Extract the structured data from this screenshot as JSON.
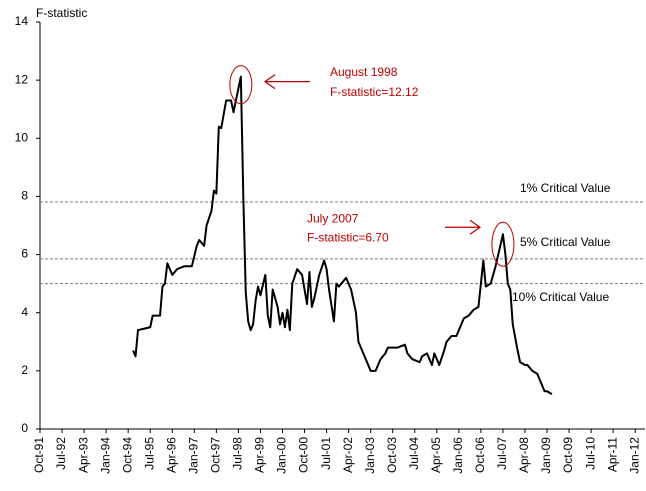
{
  "chart_data": {
    "type": "line",
    "y_label": "F-statistic",
    "x": [
      "1994-12",
      "1995-01",
      "1995-02",
      "1995-07",
      "1995-08",
      "1995-11",
      "1995-12",
      "1996-01",
      "1996-02",
      "1996-04",
      "1996-06",
      "1996-09",
      "1996-12",
      "1997-02",
      "1997-03",
      "1997-05",
      "1997-06",
      "1997-08",
      "1997-09",
      "1997-10",
      "1997-11",
      "1997-12",
      "1998-02",
      "1998-04",
      "1998-05",
      "1998-08",
      "1998-09",
      "1998-10",
      "1998-11",
      "1998-12",
      "1999-01",
      "1999-02",
      "1999-03",
      "1999-04",
      "1999-06",
      "1999-07",
      "1999-08",
      "1999-09",
      "1999-11",
      "1999-12",
      "2000-01",
      "2000-02",
      "2000-03",
      "2000-04",
      "2000-05",
      "2000-07",
      "2000-09",
      "2000-11",
      "2000-12",
      "2001-01",
      "2001-02",
      "2001-04",
      "2001-06",
      "2001-07",
      "2001-08",
      "2001-10",
      "2001-11",
      "2001-12",
      "2002-03",
      "2002-05",
      "2002-07",
      "2002-08",
      "2002-10",
      "2002-12",
      "2003-01",
      "2003-03",
      "2003-05",
      "2003-07",
      "2003-08",
      "2003-10",
      "2003-12",
      "2004-03",
      "2004-04",
      "2004-06",
      "2004-09",
      "2004-10",
      "2004-12",
      "2005-02",
      "2005-03",
      "2005-05",
      "2005-07",
      "2005-08",
      "2005-10",
      "2005-12",
      "2006-02",
      "2006-03",
      "2006-05",
      "2006-07",
      "2006-09",
      "2006-11",
      "2006-12",
      "2007-02",
      "2007-04",
      "2007-07",
      "2007-08",
      "2007-09",
      "2007-10",
      "2007-11",
      "2008-01",
      "2008-02",
      "2008-04",
      "2008-05",
      "2008-07",
      "2008-09",
      "2008-10",
      "2008-12",
      "2009-01",
      "2009-03"
    ],
    "series": [
      {
        "color": "#000000",
        "values": [
          2.7,
          2.5,
          3.4,
          3.5,
          3.9,
          3.9,
          4.9,
          5.0,
          5.7,
          5.3,
          5.5,
          5.6,
          5.6,
          6.3,
          6.5,
          6.3,
          7.0,
          7.5,
          8.2,
          8.1,
          10.4,
          10.35,
          11.3,
          11.3,
          10.9,
          12.12,
          8.0,
          4.7,
          3.7,
          3.4,
          3.6,
          4.4,
          4.9,
          4.6,
          5.3,
          3.9,
          3.5,
          4.8,
          4.2,
          3.6,
          4.0,
          3.5,
          4.1,
          3.4,
          5.0,
          5.5,
          5.3,
          4.3,
          5.4,
          4.2,
          4.5,
          5.3,
          5.8,
          5.5,
          4.8,
          3.7,
          5.0,
          4.9,
          5.2,
          4.8,
          4.0,
          3.0,
          2.6,
          2.2,
          2.0,
          2.0,
          2.4,
          2.6,
          2.8,
          2.8,
          2.8,
          2.9,
          2.6,
          2.4,
          2.3,
          2.5,
          2.6,
          2.2,
          2.6,
          2.2,
          2.7,
          3.0,
          3.2,
          3.2,
          3.6,
          3.8,
          3.9,
          4.1,
          4.2,
          5.8,
          4.9,
          5.0,
          5.6,
          6.7,
          6.0,
          5.0,
          4.8,
          3.6,
          2.7,
          2.3,
          2.2,
          2.2,
          2.0,
          1.9,
          1.7,
          1.3,
          1.3,
          1.2
        ]
      }
    ],
    "xlim": [
      "1991-10",
      "2012-05"
    ],
    "xticks": [
      {
        "value": "1991-10",
        "label": "Oct-91"
      },
      {
        "value": "1992-07",
        "label": "Jul-92"
      },
      {
        "value": "1993-04",
        "label": "Apr-93"
      },
      {
        "value": "1994-01",
        "label": "Jan-94"
      },
      {
        "value": "1994-10",
        "label": "Oct-94"
      },
      {
        "value": "1995-07",
        "label": "Jul-95"
      },
      {
        "value": "1996-04",
        "label": "Apr-96"
      },
      {
        "value": "1997-01",
        "label": "Jan-97"
      },
      {
        "value": "1997-10",
        "label": "Oct-97"
      },
      {
        "value": "1998-07",
        "label": "Jul-98"
      },
      {
        "value": "1999-04",
        "label": "Apr-99"
      },
      {
        "value": "2000-01",
        "label": "Jan-00"
      },
      {
        "value": "2000-10",
        "label": "Oct-00"
      },
      {
        "value": "2001-07",
        "label": "Jul-01"
      },
      {
        "value": "2002-04",
        "label": "Apr-02"
      },
      {
        "value": "2003-01",
        "label": "Jan-03"
      },
      {
        "value": "2003-10",
        "label": "Oct-03"
      },
      {
        "value": "2004-07",
        "label": "Jul-04"
      },
      {
        "value": "2005-04",
        "label": "Apr-05"
      },
      {
        "value": "2006-01",
        "label": "Jan-06"
      },
      {
        "value": "2006-10",
        "label": "Oct-06"
      },
      {
        "value": "2007-07",
        "label": "Jul-07"
      },
      {
        "value": "2008-04",
        "label": "Apr-08"
      },
      {
        "value": "2009-01",
        "label": "Jan-09"
      },
      {
        "value": "2009-10",
        "label": "Oct-09"
      },
      {
        "value": "2010-07",
        "label": "Jul-10"
      },
      {
        "value": "2011-04",
        "label": "Apr-11"
      },
      {
        "value": "2012-01",
        "label": "Jan-12"
      }
    ],
    "ylim": [
      0,
      14
    ],
    "yticks": [
      0,
      2,
      4,
      6,
      8,
      10,
      12,
      14
    ],
    "reference_lines": [
      {
        "label": "1% Critical Value",
        "value": 7.81
      },
      {
        "label": "5% Critical Value",
        "value": 5.85
      },
      {
        "label": "10% Critical Value",
        "value": 5.0
      }
    ],
    "annotations": [
      {
        "lines": [
          "August 1998",
          "F-statistic=12.12"
        ],
        "x": "1998-08",
        "y": 12.12,
        "color": "#c00000"
      },
      {
        "lines": [
          "July 2007",
          "F-statistic=6.70"
        ],
        "x": "2007-07",
        "y": 6.7,
        "color": "#c00000"
      }
    ]
  }
}
